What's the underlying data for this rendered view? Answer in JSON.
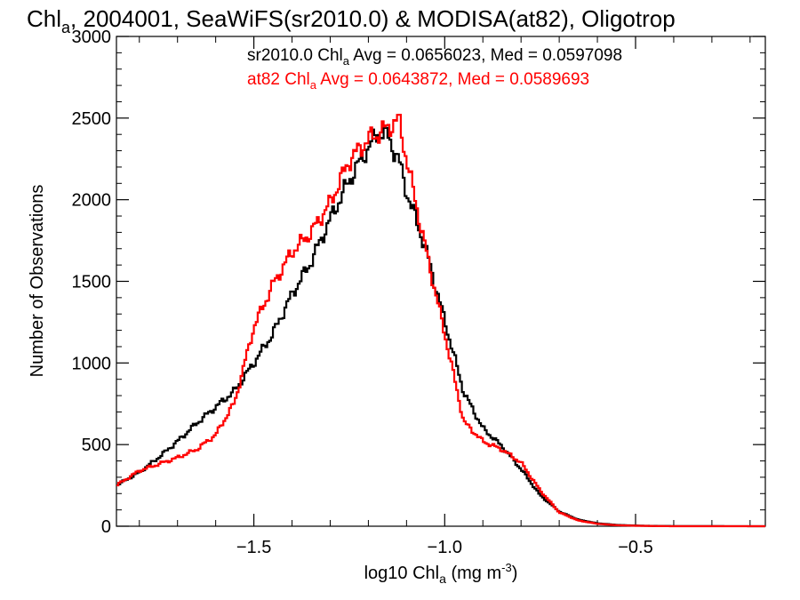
{
  "chart_data": {
    "type": "line",
    "title": "2004001, SeaWiFS(sr2010.0) & MODISA(at82), Oligotrop",
    "title_prefix": "Chl",
    "title_sub": "a",
    "xlabel_prefix": "log10 Chl",
    "xlabel_sub": "a",
    "xlabel_units": " (mg m",
    "xlabel_exp": "-3",
    "xlabel_close": ")",
    "ylabel": "Number of Observations",
    "xlim": [
      -1.86,
      -0.16
    ],
    "ylim": [
      0,
      3000
    ],
    "x_ticks": [
      -1.5,
      -1.0,
      -0.5
    ],
    "x_tick_labels": [
      "−1.5",
      "−1.0",
      "−0.5"
    ],
    "y_ticks": [
      0,
      500,
      1000,
      1500,
      2000,
      2500,
      3000
    ],
    "y_tick_labels": [
      "0",
      "500",
      "1000",
      "1500",
      "2000",
      "2500",
      "3000"
    ],
    "grid": false,
    "legend_position": "top-right",
    "series": [
      {
        "name": "sr2010.0",
        "color": "#000000",
        "legend_prefix": "sr2010.0 Chl",
        "legend_sub": "a",
        "legend_rest": " Avg = 0.0656023, Med = 0.0597098",
        "x": [
          -1.86,
          -1.8,
          -1.75,
          -1.7,
          -1.65,
          -1.6,
          -1.55,
          -1.5,
          -1.45,
          -1.4,
          -1.35,
          -1.3,
          -1.25,
          -1.2,
          -1.17,
          -1.15,
          -1.12,
          -1.1,
          -1.05,
          -1.0,
          -0.95,
          -0.9,
          -0.85,
          -0.8,
          -0.75,
          -0.7,
          -0.65,
          -0.6,
          -0.55,
          -0.5,
          -0.45,
          -0.4,
          -0.16
        ],
        "values": [
          250,
          330,
          420,
          520,
          630,
          730,
          830,
          1000,
          1180,
          1420,
          1620,
          1880,
          2120,
          2320,
          2420,
          2390,
          2240,
          2050,
          1700,
          1260,
          820,
          600,
          490,
          350,
          190,
          90,
          40,
          18,
          8,
          4,
          2,
          1,
          0
        ]
      },
      {
        "name": "at82",
        "color": "#ff0000",
        "legend_prefix": "at82 Chl",
        "legend_sub": "a",
        "legend_rest": " Avg = 0.0643872, Med = 0.0589693",
        "x": [
          -1.86,
          -1.8,
          -1.75,
          -1.7,
          -1.65,
          -1.6,
          -1.55,
          -1.5,
          -1.45,
          -1.4,
          -1.35,
          -1.3,
          -1.25,
          -1.2,
          -1.17,
          -1.15,
          -1.12,
          -1.1,
          -1.05,
          -1.0,
          -0.95,
          -0.9,
          -0.85,
          -0.8,
          -0.75,
          -0.7,
          -0.65,
          -0.6,
          -0.55,
          -0.5,
          -0.45,
          -0.4,
          -0.16
        ],
        "values": [
          250,
          340,
          380,
          420,
          470,
          560,
          760,
          1220,
          1480,
          1680,
          1800,
          1980,
          2240,
          2370,
          2410,
          2440,
          2490,
          2250,
          1700,
          1180,
          640,
          520,
          470,
          390,
          220,
          85,
          35,
          15,
          6,
          3,
          1,
          0,
          0
        ]
      }
    ]
  }
}
